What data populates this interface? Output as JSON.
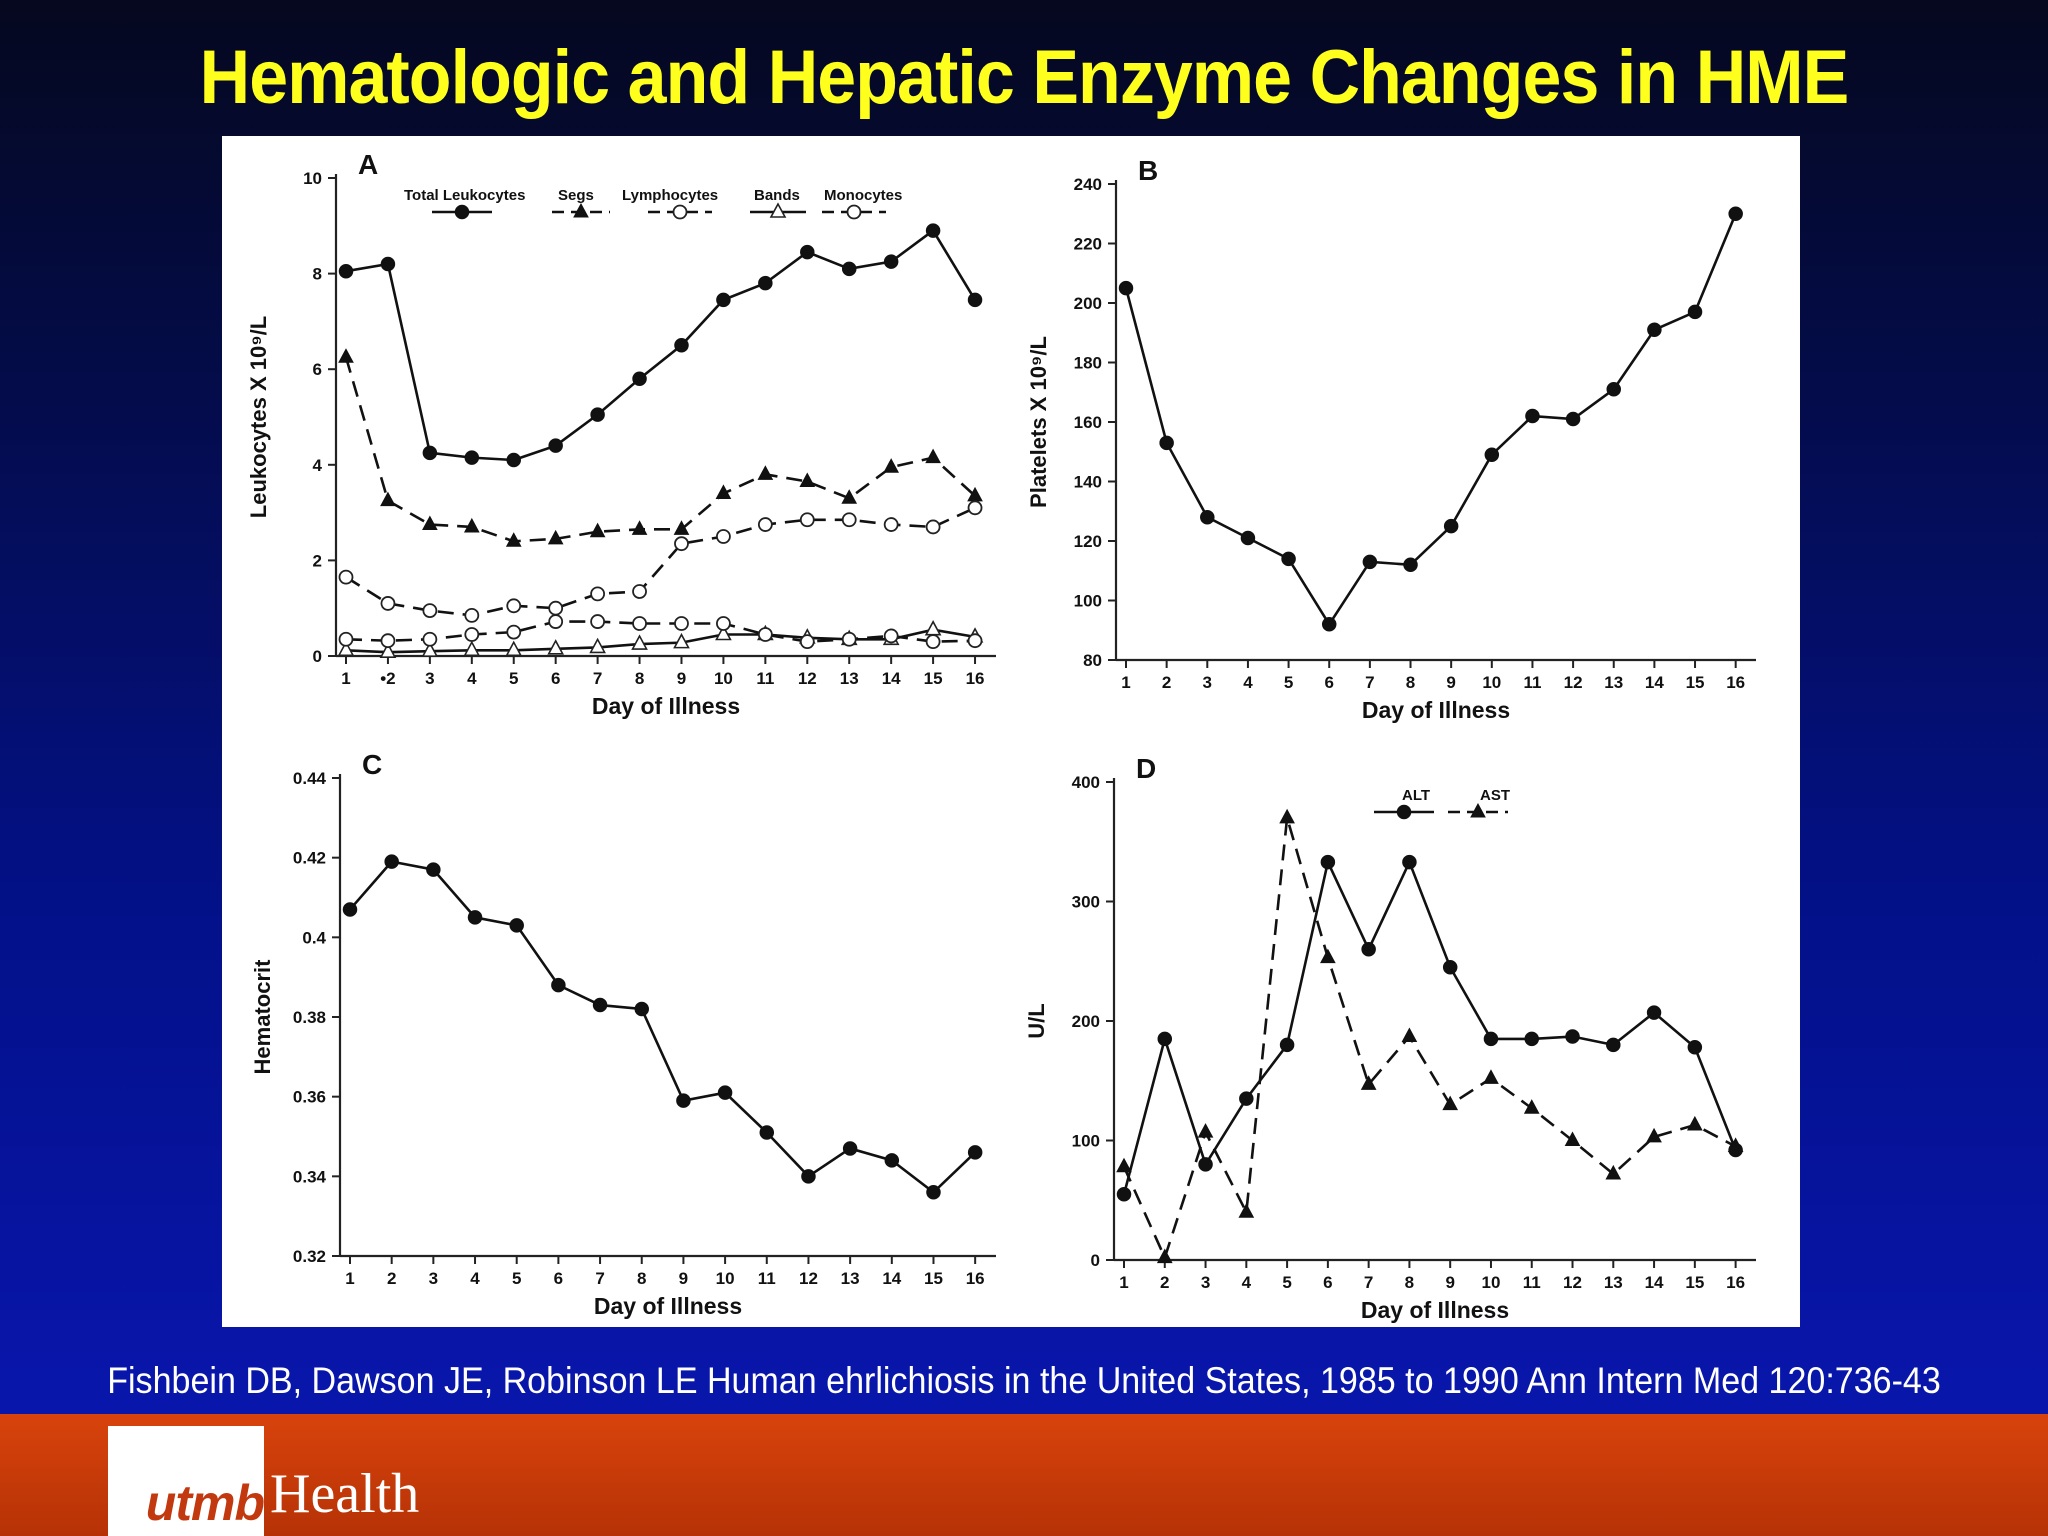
{
  "slide": {
    "title": "Hematologic and Hepatic Enzyme Changes in HME",
    "citation": "Fishbein DB, Dawson JE, Robinson LE Human ehrlichiosis in the United States, 1985 to 1990 Ann Intern Med 120:736-43",
    "logo": {
      "brand": "utmb",
      "suffix": "Health"
    },
    "colors": {
      "title": "#ffff1e",
      "footer": "#c83a08",
      "logo_red": "#c2390f"
    }
  },
  "chart_data": [
    {
      "panel": "A",
      "type": "line",
      "xlabel": "Day of Illness",
      "ylabel": "Leukocytes X 10⁹/L",
      "ylim": [
        0,
        10
      ],
      "yticks": [
        0,
        2,
        4,
        6,
        8,
        10
      ],
      "x": [
        1,
        2,
        3,
        4,
        5,
        6,
        7,
        8,
        9,
        10,
        11,
        12,
        13,
        14,
        15,
        16
      ],
      "xtick_labels": [
        "1",
        "•2",
        "3",
        "4",
        "5",
        "6",
        "7",
        "8",
        "9",
        "10",
        "11",
        "12",
        "13",
        "14",
        "15",
        "16"
      ],
      "series": [
        {
          "name": "Total Leukocytes",
          "marker": "filled-circle",
          "dash": "solid",
          "values": [
            8.05,
            8.2,
            4.25,
            4.15,
            4.1,
            4.4,
            5.05,
            5.8,
            6.5,
            7.45,
            7.8,
            8.45,
            8.1,
            8.25,
            8.9,
            7.45
          ]
        },
        {
          "name": "Segs",
          "marker": "filled-triangle",
          "dash": "dashed",
          "values": [
            6.25,
            3.25,
            2.75,
            2.7,
            2.4,
            2.45,
            2.6,
            2.65,
            2.65,
            3.4,
            3.8,
            3.65,
            3.3,
            3.95,
            4.15,
            3.35
          ]
        },
        {
          "name": "Lymphocytes",
          "marker": "open-circle",
          "dash": "dashed",
          "values": [
            1.65,
            1.1,
            0.95,
            0.85,
            1.05,
            1.0,
            1.3,
            1.35,
            2.35,
            2.5,
            2.75,
            2.85,
            2.85,
            2.75,
            2.7,
            3.1
          ]
        },
        {
          "name": "Bands",
          "marker": "open-triangle",
          "dash": "solid",
          "values": [
            0.12,
            0.08,
            0.1,
            0.12,
            0.12,
            0.15,
            0.18,
            0.25,
            0.28,
            0.45,
            0.45,
            0.38,
            0.35,
            0.35,
            0.55,
            0.4
          ]
        },
        {
          "name": "Monocytes",
          "marker": "open-circle",
          "dash": "dashed",
          "values": [
            0.35,
            0.32,
            0.35,
            0.45,
            0.5,
            0.72,
            0.72,
            0.68,
            0.68,
            0.68,
            0.45,
            0.3,
            0.35,
            0.42,
            0.3,
            0.32
          ]
        }
      ]
    },
    {
      "panel": "B",
      "type": "line",
      "xlabel": "Day of Illness",
      "ylabel": "Platelets X 10⁹/L",
      "ylim": [
        80,
        240
      ],
      "yticks": [
        80,
        100,
        120,
        140,
        160,
        180,
        200,
        220,
        240
      ],
      "x": [
        1,
        2,
        3,
        4,
        5,
        6,
        7,
        8,
        9,
        10,
        11,
        12,
        13,
        14,
        15,
        16
      ],
      "xtick_labels": [
        "1",
        "2",
        "3",
        "4",
        "5",
        "6",
        "7",
        "8",
        "9",
        "10",
        "11",
        "12",
        "13",
        "14",
        "15",
        "16"
      ],
      "series": [
        {
          "name": "Platelets",
          "marker": "filled-circle",
          "dash": "solid",
          "values": [
            205,
            153,
            128,
            121,
            114,
            92,
            113,
            112,
            125,
            149,
            162,
            161,
            171,
            191,
            197,
            230
          ]
        }
      ]
    },
    {
      "panel": "C",
      "type": "line",
      "xlabel": "Day of Illness",
      "ylabel": "Hematocrit",
      "ylim": [
        0.32,
        0.44
      ],
      "yticks": [
        0.32,
        0.34,
        0.36,
        0.38,
        0.4,
        0.42,
        0.44
      ],
      "ytick_labels": [
        "0.32",
        "0.34",
        "0.36",
        "0.38",
        "0.4",
        "0.42",
        "0.44"
      ],
      "x": [
        1,
        2,
        3,
        4,
        5,
        6,
        7,
        8,
        9,
        10,
        11,
        12,
        13,
        14,
        15,
        16
      ],
      "xtick_labels": [
        "1",
        "2",
        "3",
        "4",
        "5",
        "6",
        "7",
        "8",
        "9",
        "10",
        "11",
        "12",
        "13",
        "14",
        "15",
        "16"
      ],
      "series": [
        {
          "name": "Hematocrit",
          "marker": "filled-circle",
          "dash": "solid",
          "values": [
            0.407,
            0.419,
            0.417,
            0.405,
            0.403,
            0.388,
            0.383,
            0.382,
            0.359,
            0.361,
            0.351,
            0.34,
            0.347,
            0.344,
            0.336,
            0.346
          ]
        }
      ]
    },
    {
      "panel": "D",
      "type": "line",
      "xlabel": "Day of Illness",
      "ylabel": "U/L",
      "ylim": [
        0,
        400
      ],
      "yticks": [
        0,
        100,
        200,
        300,
        400
      ],
      "x": [
        1,
        2,
        3,
        4,
        5,
        6,
        7,
        8,
        9,
        10,
        11,
        12,
        13,
        14,
        15,
        16
      ],
      "xtick_labels": [
        "1",
        "2",
        "3",
        "4",
        "5",
        "6",
        "7",
        "8",
        "9",
        "10",
        "11",
        "12",
        "13",
        "14",
        "15",
        "16"
      ],
      "series": [
        {
          "name": "ALT",
          "marker": "filled-circle",
          "dash": "solid",
          "values": [
            55,
            185,
            80,
            135,
            180,
            333,
            260,
            333,
            245,
            185,
            185,
            187,
            180,
            207,
            178,
            92
          ]
        },
        {
          "name": "AST",
          "marker": "filled-triangle",
          "dash": "dashed",
          "values": [
            78,
            2,
            107,
            40,
            370,
            253,
            147,
            187,
            130,
            152,
            127,
            100,
            72,
            103,
            113,
            95
          ]
        }
      ]
    }
  ]
}
